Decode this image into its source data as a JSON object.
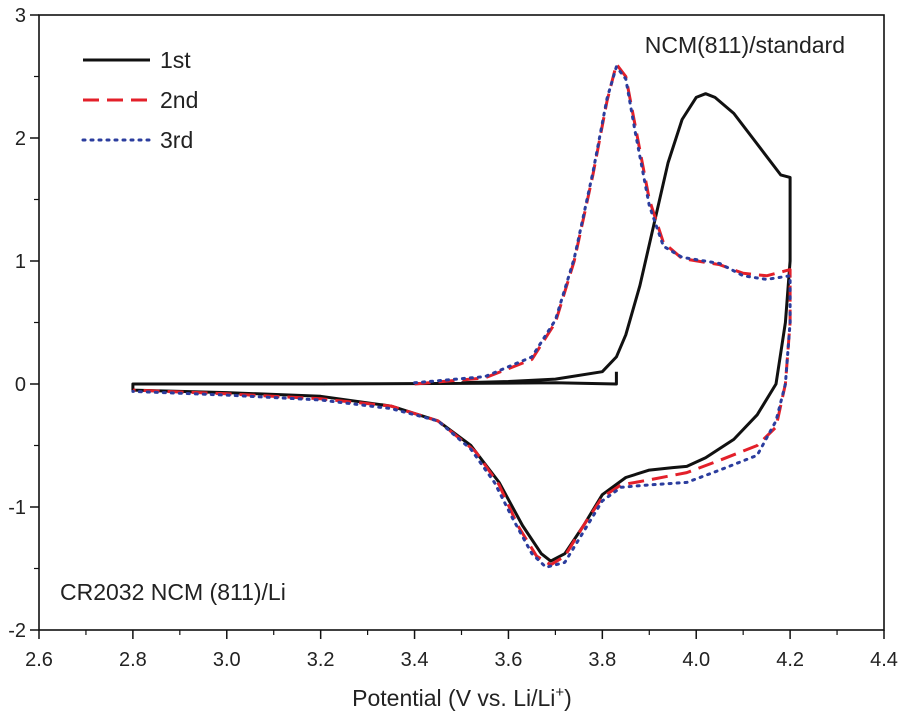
{
  "chart_data": {
    "type": "line",
    "title": "",
    "xlabel": "Potential (V  vs. Li/Li",
    "xlabel_sup": "+",
    "xlabel_close": ")",
    "ylabel": "",
    "xlim": [
      2.6,
      4.4
    ],
    "ylim": [
      -2,
      3
    ],
    "xticks": [
      2.6,
      2.8,
      3.0,
      3.2,
      3.4,
      3.6,
      3.8,
      4.0,
      4.2,
      4.4
    ],
    "xtick_labels": [
      "2.6",
      "2.8",
      "3.0",
      "3.2",
      "3.4",
      "3.6",
      "3.8",
      "4.0",
      "4.2",
      "4.4"
    ],
    "yticks": [
      -2,
      -1,
      0,
      1,
      2,
      3
    ],
    "ytick_labels": [
      "-2",
      "-1",
      "0",
      "1",
      "2",
      "3"
    ],
    "grid": false,
    "legend_position": "top-left",
    "annotations": [
      "NCM(811)/standard",
      "CR2032 NCM (811)/Li"
    ],
    "series": [
      {
        "name": "1st",
        "color": "#111111",
        "style": "solid",
        "points": [
          [
            3.83,
            0.1
          ],
          [
            3.83,
            0.0
          ],
          [
            3.7,
            0.01
          ],
          [
            3.5,
            0.005
          ],
          [
            3.2,
            0.0
          ],
          [
            2.8,
            0.0
          ],
          [
            2.8,
            -0.05
          ],
          [
            3.0,
            -0.07
          ],
          [
            3.2,
            -0.1
          ],
          [
            3.35,
            -0.18
          ],
          [
            3.45,
            -0.3
          ],
          [
            3.52,
            -0.5
          ],
          [
            3.58,
            -0.8
          ],
          [
            3.63,
            -1.15
          ],
          [
            3.67,
            -1.38
          ],
          [
            3.69,
            -1.44
          ],
          [
            3.72,
            -1.38
          ],
          [
            3.76,
            -1.15
          ],
          [
            3.8,
            -0.9
          ],
          [
            3.85,
            -0.76
          ],
          [
            3.9,
            -0.7
          ],
          [
            3.95,
            -0.68
          ],
          [
            3.98,
            -0.67
          ],
          [
            4.02,
            -0.6
          ],
          [
            4.08,
            -0.45
          ],
          [
            4.13,
            -0.25
          ],
          [
            4.17,
            0.0
          ],
          [
            4.19,
            0.5
          ],
          [
            4.2,
            1.0
          ],
          [
            4.2,
            1.5
          ],
          [
            4.2,
            1.68
          ],
          [
            4.18,
            1.7
          ],
          [
            4.12,
            2.0
          ],
          [
            4.08,
            2.2
          ],
          [
            4.04,
            2.33
          ],
          [
            4.02,
            2.36
          ],
          [
            4.0,
            2.33
          ],
          [
            3.97,
            2.15
          ],
          [
            3.94,
            1.8
          ],
          [
            3.91,
            1.3
          ],
          [
            3.88,
            0.8
          ],
          [
            3.85,
            0.4
          ],
          [
            3.83,
            0.22
          ],
          [
            3.8,
            0.1
          ],
          [
            3.7,
            0.04
          ],
          [
            3.6,
            0.02
          ],
          [
            3.5,
            0.01
          ]
        ]
      },
      {
        "name": "2nd",
        "color": "#e3202a",
        "style": "dashed",
        "points": [
          [
            3.4,
            0.0
          ],
          [
            3.55,
            0.05
          ],
          [
            3.65,
            0.2
          ],
          [
            3.7,
            0.5
          ],
          [
            3.74,
            1.0
          ],
          [
            3.78,
            1.7
          ],
          [
            3.81,
            2.3
          ],
          [
            3.83,
            2.6
          ],
          [
            3.85,
            2.5
          ],
          [
            3.87,
            2.1
          ],
          [
            3.9,
            1.5
          ],
          [
            3.93,
            1.15
          ],
          [
            3.97,
            1.02
          ],
          [
            4.05,
            0.97
          ],
          [
            4.1,
            0.9
          ],
          [
            4.15,
            0.88
          ],
          [
            4.2,
            0.93
          ],
          [
            4.2,
            0.5
          ],
          [
            4.19,
            0.0
          ],
          [
            4.17,
            -0.35
          ],
          [
            4.13,
            -0.5
          ],
          [
            4.05,
            -0.62
          ],
          [
            3.98,
            -0.72
          ],
          [
            3.9,
            -0.78
          ],
          [
            3.84,
            -0.82
          ],
          [
            3.8,
            -0.92
          ],
          [
            3.76,
            -1.15
          ],
          [
            3.72,
            -1.4
          ],
          [
            3.69,
            -1.47
          ],
          [
            3.66,
            -1.4
          ],
          [
            3.62,
            -1.15
          ],
          [
            3.58,
            -0.82
          ],
          [
            3.53,
            -0.55
          ],
          [
            3.45,
            -0.3
          ],
          [
            3.35,
            -0.18
          ],
          [
            3.2,
            -0.12
          ],
          [
            3.0,
            -0.08
          ],
          [
            2.8,
            -0.05
          ]
        ]
      },
      {
        "name": "3rd",
        "color": "#2b3d9e",
        "style": "dotted",
        "points": [
          [
            3.4,
            0.01
          ],
          [
            3.55,
            0.06
          ],
          [
            3.65,
            0.22
          ],
          [
            3.7,
            0.52
          ],
          [
            3.74,
            1.02
          ],
          [
            3.78,
            1.72
          ],
          [
            3.81,
            2.32
          ],
          [
            3.83,
            2.58
          ],
          [
            3.85,
            2.48
          ],
          [
            3.87,
            2.05
          ],
          [
            3.9,
            1.45
          ],
          [
            3.93,
            1.12
          ],
          [
            3.97,
            1.03
          ],
          [
            4.05,
            0.98
          ],
          [
            4.1,
            0.88
          ],
          [
            4.15,
            0.85
          ],
          [
            4.2,
            0.88
          ],
          [
            4.2,
            0.5
          ],
          [
            4.19,
            0.0
          ],
          [
            4.17,
            -0.3
          ],
          [
            4.13,
            -0.58
          ],
          [
            4.05,
            -0.7
          ],
          [
            3.98,
            -0.8
          ],
          [
            3.9,
            -0.82
          ],
          [
            3.84,
            -0.84
          ],
          [
            3.8,
            -0.95
          ],
          [
            3.76,
            -1.2
          ],
          [
            3.72,
            -1.45
          ],
          [
            3.68,
            -1.49
          ],
          [
            3.65,
            -1.38
          ],
          [
            3.61,
            -1.1
          ],
          [
            3.57,
            -0.8
          ],
          [
            3.52,
            -0.53
          ],
          [
            3.45,
            -0.3
          ],
          [
            3.35,
            -0.2
          ],
          [
            3.2,
            -0.13
          ],
          [
            3.0,
            -0.09
          ],
          [
            2.8,
            -0.06
          ]
        ]
      }
    ]
  }
}
